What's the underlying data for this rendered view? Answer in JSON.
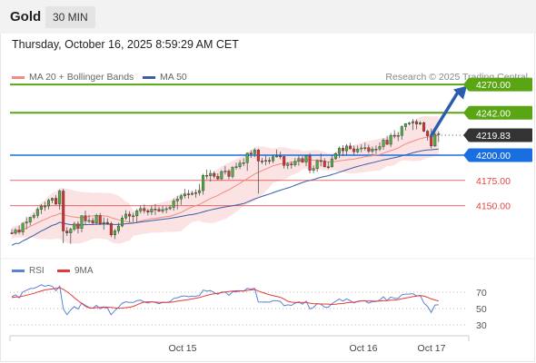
{
  "header": {
    "instrument": "Gold",
    "timeframe": "30 MIN"
  },
  "datetime": "Thursday, October 16, 2025 8:59:29 AM CET",
  "legend": {
    "ma20": {
      "label": "MA 20 + Bollinger Bands",
      "color": "#f28b82"
    },
    "ma50": {
      "label": "MA 50",
      "color": "#3a5ea8"
    }
  },
  "credit": "Research © 2025 Trading Central",
  "colors": {
    "resistance": "#5aa514",
    "pivot": "#1a6fe0",
    "support": "#e34444",
    "current": "#333333",
    "up": "#4caf3f",
    "down": "#d93030",
    "band": "#fbe3e3",
    "arrow": "#2a5db0"
  },
  "chart_data": [
    {
      "type": "candlestick",
      "price_range": [
        4115,
        4275
      ],
      "levels": [
        {
          "value": "4270.00",
          "role": "resistance"
        },
        {
          "value": "4242.00",
          "role": "resistance"
        },
        {
          "value": "4219.83",
          "role": "current"
        },
        {
          "value": "4200.00",
          "role": "pivot"
        },
        {
          "value": "4175.00",
          "role": "support"
        },
        {
          "value": "4150.00",
          "role": "support"
        }
      ],
      "x_tick_labels": [
        "Oct 15",
        "Oct 16",
        "Oct 17"
      ],
      "forecast_arrow": {
        "from": 4219,
        "to": 4266
      },
      "candles": [
        [
          4123.0,
          4126.8,
          4121.7,
          4122.7
        ],
        [
          4122.7,
          4127.7,
          4121.1,
          4125.9
        ],
        [
          4125.9,
          4130.4,
          4121.6,
          4123.9
        ],
        [
          4123.9,
          4132.8,
          4120.7,
          4132.7
        ],
        [
          4132.7,
          4138.6,
          4126.6,
          4133.8
        ],
        [
          4133.8,
          4138.9,
          4130.4,
          4138.5
        ],
        [
          4138.5,
          4142.7,
          4136.6,
          4140.3
        ],
        [
          4140.3,
          4148.1,
          4137.5,
          4146.3
        ],
        [
          4146.3,
          4151.5,
          4141.7,
          4149.5
        ],
        [
          4149.5,
          4153.9,
          4144.8,
          4149.6
        ],
        [
          4149.6,
          4157.0,
          4146.4,
          4155.3
        ],
        [
          4155.3,
          4158.0,
          4152.4,
          4157.3
        ],
        [
          4157.3,
          4160.4,
          4150.8,
          4151.5
        ],
        [
          4151.5,
          4166.0,
          4146.1,
          4164.5
        ],
        [
          4164.5,
          4166.7,
          4112.7,
          4124.9
        ],
        [
          4124.9,
          4128.6,
          4119.8,
          4122.9
        ],
        [
          4122.9,
          4128.1,
          4112.2,
          4126.6
        ],
        [
          4126.6,
          4134.1,
          4124.7,
          4131.9
        ],
        [
          4131.9,
          4134.5,
          4122.5,
          4127.4
        ],
        [
          4127.4,
          4140.6,
          4123.6,
          4140.0
        ],
        [
          4140.0,
          4145.0,
          4130.9,
          4134.8
        ],
        [
          4134.8,
          4140.9,
          4132.5,
          4135.3
        ],
        [
          4135.3,
          4138.2,
          4130.6,
          4132.8
        ],
        [
          4132.8,
          4142.1,
          4130.9,
          4140.2
        ],
        [
          4140.2,
          4142.7,
          4130.6,
          4132.2
        ],
        [
          4132.2,
          4138.4,
          4126.2,
          4133.4
        ],
        [
          4133.4,
          4137.5,
          4130.7,
          4132.3
        ],
        [
          4132.3,
          4134.1,
          4118.8,
          4121.0
        ],
        [
          4121.0,
          4127.1,
          4116.9,
          4125.0
        ],
        [
          4125.0,
          4133.2,
          4122.2,
          4129.8
        ],
        [
          4129.8,
          4140.3,
          4128.6,
          4137.7
        ],
        [
          4137.7,
          4145.5,
          4135.9,
          4141.6
        ],
        [
          4141.6,
          4144.5,
          4133.4,
          4139.6
        ],
        [
          4139.6,
          4142.9,
          4133.6,
          4139.9
        ],
        [
          4139.9,
          4146.6,
          4133.3,
          4144.8
        ],
        [
          4144.8,
          4150.1,
          4142.2,
          4147.1
        ],
        [
          4147.1,
          4151.2,
          4142.2,
          4145.0
        ],
        [
          4145.0,
          4146.8,
          4140.3,
          4143.6
        ],
        [
          4143.6,
          4149.9,
          4140.7,
          4146.6
        ],
        [
          4146.6,
          4151.6,
          4140.6,
          4146.4
        ],
        [
          4146.4,
          4149.1,
          4143.6,
          4144.5
        ],
        [
          4144.5,
          4149.6,
          4142.3,
          4146.2
        ],
        [
          4146.2,
          4149.1,
          4142.5,
          4146.9
        ],
        [
          4146.9,
          4150.5,
          4145.6,
          4148.3
        ],
        [
          4148.3,
          4157.1,
          4145.0,
          4154.6
        ],
        [
          4154.6,
          4159.8,
          4146.3,
          4156.6
        ],
        [
          4156.6,
          4161.6,
          4150.8,
          4159.7
        ],
        [
          4159.7,
          4166.6,
          4157.3,
          4161.6
        ],
        [
          4161.6,
          4165.6,
          4156.9,
          4161.2
        ],
        [
          4161.2,
          4164.6,
          4160.2,
          4162.2
        ],
        [
          4162.2,
          4166.2,
          4157.8,
          4162.8
        ],
        [
          4162.8,
          4171.6,
          4160.0,
          4164.9
        ],
        [
          4164.9,
          4181.6,
          4160.9,
          4180.0
        ],
        [
          4180.0,
          4185.7,
          4176.1,
          4179.6
        ],
        [
          4179.6,
          4185.3,
          4173.8,
          4182.0
        ],
        [
          4182.0,
          4184.1,
          4176.8,
          4179.0
        ],
        [
          4179.0,
          4182.0,
          4175.2,
          4176.5
        ],
        [
          4176.5,
          4185.2,
          4175.3,
          4183.8
        ],
        [
          4183.8,
          4189.2,
          4180.9,
          4184.3
        ],
        [
          4184.3,
          4186.1,
          4176.0,
          4178.9
        ],
        [
          4178.9,
          4189.1,
          4176.8,
          4187.9
        ],
        [
          4187.9,
          4192.6,
          4185.7,
          4188.6
        ],
        [
          4188.6,
          4195.3,
          4186.2,
          4192.1
        ],
        [
          4192.1,
          4196.9,
          4189.1,
          4192.6
        ],
        [
          4192.6,
          4202.6,
          4184.4,
          4202.0
        ],
        [
          4202.0,
          4204.9,
          4197.2,
          4201.5
        ],
        [
          4201.5,
          4206.9,
          4197.9,
          4205.1
        ],
        [
          4205.1,
          4206.4,
          4161.9,
          4194.2
        ],
        [
          4194.2,
          4197.3,
          4191.1,
          4194.0
        ],
        [
          4194.0,
          4199.9,
          4190.0,
          4194.8
        ],
        [
          4194.8,
          4197.9,
          4191.2,
          4194.4
        ],
        [
          4194.4,
          4200.7,
          4192.1,
          4198.5
        ],
        [
          4198.5,
          4205.5,
          4197.6,
          4199.2
        ],
        [
          4199.2,
          4203.4,
          4196.0,
          4198.7
        ],
        [
          4198.7,
          4199.7,
          4186.7,
          4189.8
        ],
        [
          4189.8,
          4193.0,
          4186.2,
          4191.2
        ],
        [
          4191.2,
          4193.6,
          4186.6,
          4190.5
        ],
        [
          4190.5,
          4197.2,
          4188.5,
          4193.8
        ],
        [
          4193.8,
          4199.9,
          4189.6,
          4196.7
        ],
        [
          4196.7,
          4199.4,
          4192.4,
          4193.0
        ],
        [
          4193.0,
          4200.0,
          4189.1,
          4199.5
        ],
        [
          4199.5,
          4202.0,
          4182.1,
          4185.1
        ],
        [
          4185.1,
          4189.9,
          4182.3,
          4186.7
        ],
        [
          4186.7,
          4196.0,
          4183.5,
          4194.6
        ],
        [
          4194.6,
          4201.6,
          4189.0,
          4194.1
        ],
        [
          4194.1,
          4197.0,
          4187.7,
          4188.5
        ],
        [
          4188.5,
          4193.7,
          4186.1,
          4188.4
        ],
        [
          4188.4,
          4199.6,
          4187.8,
          4196.4
        ],
        [
          4196.4,
          4202.9,
          4195.5,
          4201.6
        ],
        [
          4201.6,
          4208.5,
          4197.1,
          4206.9
        ],
        [
          4206.9,
          4209.9,
          4199.0,
          4204.4
        ],
        [
          4204.4,
          4210.9,
          4200.0,
          4209.1
        ],
        [
          4209.1,
          4212.3,
          4205.6,
          4206.3
        ],
        [
          4206.3,
          4209.5,
          4199.6,
          4203.4
        ],
        [
          4203.4,
          4209.6,
          4201.8,
          4206.2
        ],
        [
          4206.2,
          4210.8,
          4202.8,
          4207.2
        ],
        [
          4207.2,
          4212.4,
          4204.4,
          4207.4
        ],
        [
          4207.4,
          4210.4,
          4201.7,
          4203.9
        ],
        [
          4203.9,
          4208.6,
          4201.4,
          4206.1
        ],
        [
          4206.1,
          4209.7,
          4201.2,
          4206.0
        ],
        [
          4206.0,
          4212.7,
          4204.1,
          4208.6
        ],
        [
          4208.6,
          4216.7,
          4205.5,
          4214.9
        ],
        [
          4214.9,
          4219.2,
          4210.0,
          4210.8
        ],
        [
          4210.8,
          4221.9,
          4207.9,
          4219.7
        ],
        [
          4219.7,
          4224.8,
          4216.6,
          4218.8
        ],
        [
          4218.8,
          4223.1,
          4214.0,
          4219.5
        ],
        [
          4219.5,
          4229.6,
          4215.3,
          4228.3
        ],
        [
          4228.3,
          4231.8,
          4224.6,
          4231.3
        ],
        [
          4231.3,
          4233.0,
          4229.6,
          4231.9
        ],
        [
          4231.9,
          4235.7,
          4224.9,
          4233.3
        ],
        [
          4233.3,
          4235.4,
          4225.6,
          4230.9
        ],
        [
          4230.9,
          4233.7,
          4229.8,
          4232.2
        ],
        [
          4232.2,
          4233.3,
          4222.9,
          4223.8
        ],
        [
          4223.8,
          4225.1,
          4214.5,
          4219.2
        ],
        [
          4219.2,
          4226.4,
          4206.6,
          4209.1
        ],
        [
          4209.1,
          4225.0,
          4208.1,
          4220.7
        ],
        [
          4220.7,
          4223.6,
          4213.0,
          4221.2
        ]
      ]
    },
    {
      "type": "line",
      "title": "RSI",
      "y_tick_labels": [
        "70",
        "50",
        "30"
      ],
      "series": [
        {
          "name": "RSI",
          "color": "#5b82d6",
          "values": [
            64.5,
            66.9,
            63.1,
            70.5,
            72.4,
            74.4,
            74.8,
            76.6,
            79.1,
            77.2,
            78.4,
            77.3,
            71.9,
            77.4,
            49.4,
            42.4,
            48.3,
            52.3,
            49.4,
            56.8,
            53.8,
            51.4,
            50.5,
            54.0,
            49.8,
            51.5,
            50.5,
            42.5,
            47.5,
            51.4,
            56.5,
            58.3,
            57.5,
            57.4,
            59.6,
            60.3,
            58.0,
            56.7,
            58.5,
            57.5,
            55.9,
            57.7,
            57.6,
            58.4,
            62.4,
            63.2,
            64.9,
            65.6,
            64.5,
            65.1,
            65.3,
            65.9,
            72.6,
            71.4,
            72.0,
            69.3,
            67.5,
            70.2,
            70.2,
            66.1,
            70.4,
            70.4,
            71.6,
            71.2,
            74.8,
            73.9,
            74.8,
            58.0,
            57.9,
            58.1,
            57.8,
            59.5,
            59.5,
            58.8,
            53.5,
            54.6,
            53.9,
            56.5,
            58.3,
            55.3,
            59.0,
            49.5,
            51.3,
            56.1,
            55.3,
            51.7,
            51.5,
            56.0,
            58.8,
            61.7,
            59.1,
            61.9,
            59.6,
            56.9,
            58.9,
            59.5,
            59.5,
            56.6,
            58.6,
            58.4,
            60.4,
            64.3,
            59.8,
            64.1,
            62.4,
            62.7,
            66.9,
            67.7,
            67.8,
            68.2,
            65.4,
            66.2,
            56.9,
            52.7,
            45.2,
            54.3,
            54.5
          ]
        },
        {
          "name": "9MA",
          "color": "#e33b3b",
          "values": [
            63.5,
            64.2,
            64.3,
            65.2,
            66.3,
            67.5,
            68.6,
            70.2,
            71.5,
            72.8,
            73.5,
            74.0,
            74.8,
            75.6,
            73.6,
            70.6,
            67.2,
            63.3,
            59.6,
            56.3,
            52.9,
            50.9,
            50.4,
            51.1,
            51.4,
            52.0,
            51.7,
            51.4,
            50.8,
            50.5,
            50.6,
            51.1,
            51.7,
            52.7,
            54.6,
            56.5,
            58.0,
            58.2,
            58.1,
            57.9,
            57.6,
            57.7,
            57.4,
            57.7,
            58.2,
            59.0,
            59.7,
            60.3,
            61.0,
            61.8,
            62.7,
            63.4,
            64.8,
            66.1,
            67.2,
            68.1,
            68.8,
            69.6,
            70.3,
            70.8,
            71.4,
            71.7,
            71.8,
            71.6,
            72.2,
            72.8,
            73.3,
            71.4,
            69.9,
            68.5,
            66.9,
            65.9,
            64.9,
            63.8,
            61.6,
            58.9,
            57.8,
            57.6,
            57.3,
            57.4,
            57.5,
            56.5,
            56.0,
            55.9,
            55.6,
            55.6,
            55.4,
            55.0,
            55.2,
            56.0,
            56.1,
            57.1,
            57.5,
            57.8,
            58.5,
            59.3,
            59.3,
            59.2,
            59.2,
            59.0,
            59.1,
            59.6,
            59.7,
            60.3,
            60.5,
            61.0,
            61.9,
            62.9,
            63.7,
            64.6,
            65.2,
            65.9,
            65.2,
            63.8,
            61.8,
            60.5,
            59.3
          ]
        }
      ]
    }
  ]
}
